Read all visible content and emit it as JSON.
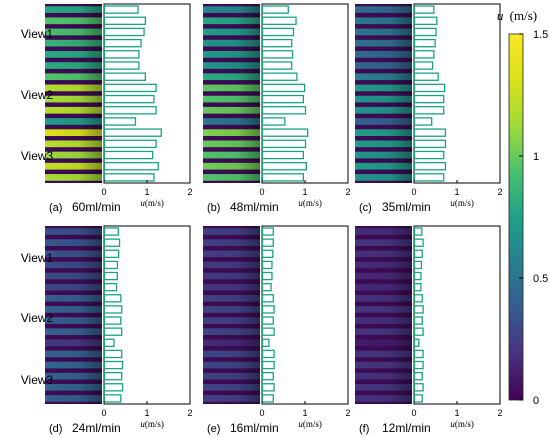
{
  "colorbar": {
    "title_var": "u",
    "title_unit": "(m/s)",
    "ticks": [
      "1.5",
      "1",
      "0.5",
      "0"
    ],
    "tick_values": [
      1.5,
      1.0,
      0.5,
      0.0
    ],
    "range": [
      0,
      1.5
    ],
    "colormap": "viridis"
  },
  "view_labels": [
    "View1",
    "View2",
    "View3"
  ],
  "axis": {
    "ticks": [
      "0",
      "1",
      "2"
    ],
    "tick_values": [
      0,
      1,
      2
    ],
    "label_var": "u",
    "label_unit": "(m/s)"
  },
  "colors": {
    "bar_edge": "#1aa383",
    "frame": "#000000"
  },
  "chart_data": [
    {
      "type": "bar",
      "orientation": "horizontal",
      "panel_label": "(a)",
      "title": "60ml/min",
      "xlabel": "u(m/s)",
      "xlim": [
        0,
        2
      ],
      "values": [
        0.78,
        0.95,
        0.92,
        0.85,
        0.8,
        0.8,
        0.95,
        1.2,
        1.15,
        1.2,
        0.72,
        1.32,
        1.2,
        1.12,
        1.25,
        1.15
      ]
    },
    {
      "type": "bar",
      "orientation": "horizontal",
      "panel_label": "(b)",
      "title": "48ml/min",
      "xlabel": "u(m/s)",
      "xlim": [
        0,
        2
      ],
      "values": [
        0.6,
        0.78,
        0.72,
        0.68,
        0.7,
        0.68,
        0.8,
        0.98,
        0.95,
        1.0,
        0.52,
        1.05,
        1.0,
        0.95,
        1.02,
        0.95
      ]
    },
    {
      "type": "bar",
      "orientation": "horizontal",
      "panel_label": "(c)",
      "title": "35ml/min",
      "xlabel": "u(m/s)",
      "xlim": [
        0,
        2
      ],
      "values": [
        0.45,
        0.52,
        0.5,
        0.48,
        0.45,
        0.42,
        0.55,
        0.7,
        0.68,
        0.68,
        0.4,
        0.72,
        0.72,
        0.68,
        0.72,
        0.68
      ]
    },
    {
      "type": "bar",
      "orientation": "horizontal",
      "panel_label": "(d)",
      "title": "24ml/min",
      "xlabel": "u(m/s)",
      "xlim": [
        0,
        2
      ],
      "values": [
        0.32,
        0.35,
        0.33,
        0.3,
        0.3,
        0.28,
        0.38,
        0.4,
        0.38,
        0.4,
        0.22,
        0.4,
        0.42,
        0.4,
        0.42,
        0.38
      ]
    },
    {
      "type": "bar",
      "orientation": "horizontal",
      "panel_label": "(e)",
      "title": "16ml/min",
      "xlabel": "u(m/s)",
      "xlim": [
        0,
        2
      ],
      "values": [
        0.25,
        0.25,
        0.24,
        0.22,
        0.22,
        0.2,
        0.25,
        0.27,
        0.25,
        0.27,
        0.15,
        0.27,
        0.27,
        0.25,
        0.27,
        0.25
      ]
    },
    {
      "type": "bar",
      "orientation": "horizontal",
      "panel_label": "(f)",
      "title": "12ml/min",
      "xlabel": "u(m/s)",
      "xlim": [
        0,
        2
      ],
      "values": [
        0.17,
        0.2,
        0.18,
        0.16,
        0.15,
        0.15,
        0.18,
        0.2,
        0.18,
        0.2,
        0.1,
        0.2,
        0.2,
        0.18,
        0.2,
        0.18
      ]
    }
  ]
}
